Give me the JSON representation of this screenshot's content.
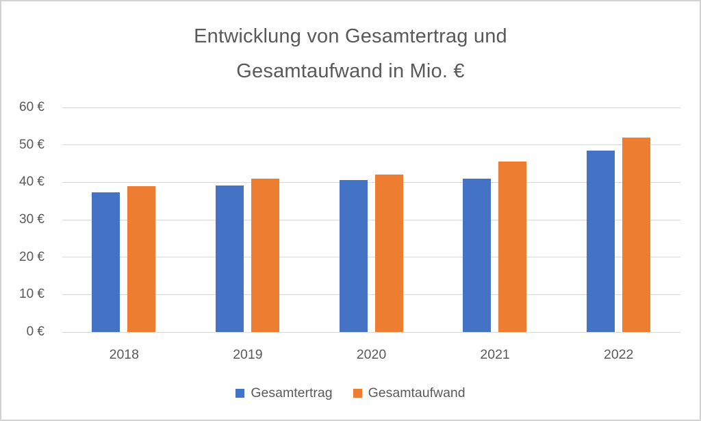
{
  "title_lines": [
    "Entwicklung von Gesamtertrag und",
    "Gesamtaufwand in Mio. €"
  ],
  "chart_data": {
    "type": "bar",
    "title": "Entwicklung von Gesamtertrag und Gesamtaufwand in Mio. €",
    "categories": [
      "2018",
      "2019",
      "2020",
      "2021",
      "2022"
    ],
    "series": [
      {
        "name": "Gesamtertrag",
        "color": "#4472C4",
        "values": [
          37.4,
          39.2,
          40.6,
          41.0,
          48.4
        ]
      },
      {
        "name": "Gesamtaufwand",
        "color": "#ED7D31",
        "values": [
          38.9,
          40.9,
          42.0,
          45.5,
          51.9
        ]
      }
    ],
    "xlabel": "",
    "ylabel": "",
    "ylim": [
      0,
      60
    ],
    "ytick_step": 10,
    "ytick_labels": [
      "0 €",
      "10 €",
      "20 €",
      "30 €",
      "40 €",
      "50 €",
      "60 €"
    ],
    "grid": true,
    "legend_position": "bottom"
  },
  "colors": {
    "text_gray": "#595959",
    "gridline": "#d9d9d9",
    "series_blue": "#4472C4",
    "series_orange": "#ED7D31",
    "frame_border": "#d2d2d2"
  }
}
